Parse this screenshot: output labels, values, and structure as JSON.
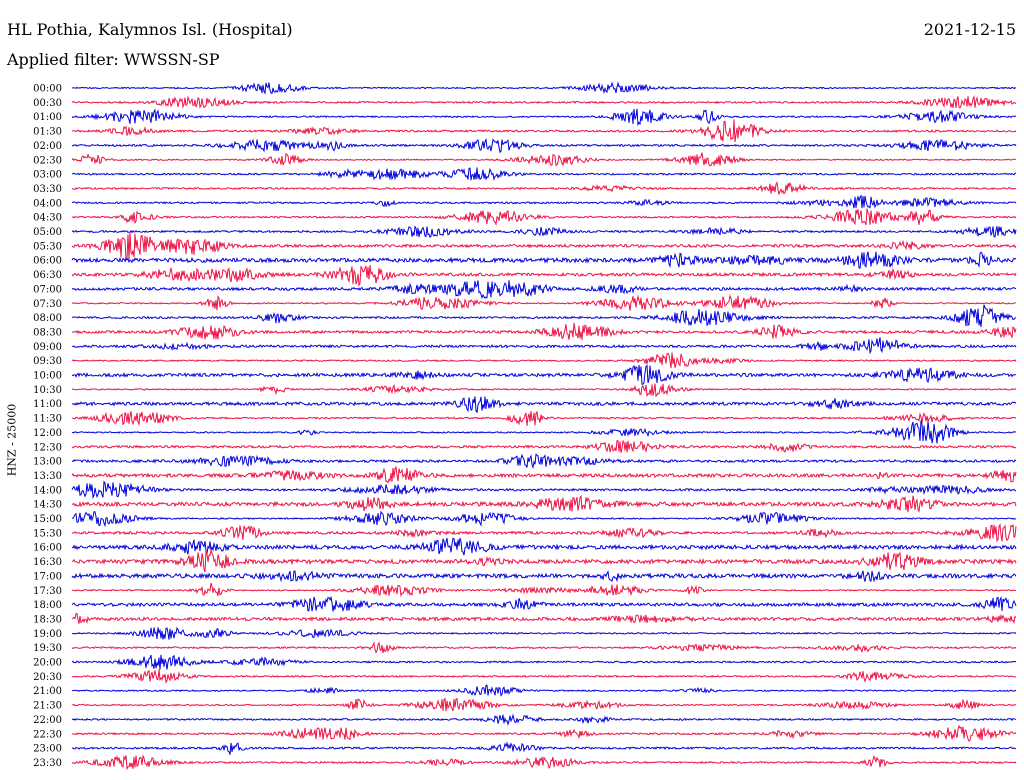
{
  "header": {
    "station": "HL Pothia, Kalymnos Isl. (Hospital)",
    "date": "2021-12-15",
    "filter": "Applied filter: WWSSN-SP"
  },
  "chart_data": {
    "type": "line",
    "ylabel": "HNZ - 25000",
    "colors": [
      "#0000dd",
      "#ee1144"
    ],
    "rows": [
      "00:00",
      "00:30",
      "01:00",
      "01:30",
      "02:00",
      "02:30",
      "03:00",
      "03:30",
      "04:00",
      "04:30",
      "05:00",
      "05:30",
      "06:00",
      "06:30",
      "07:00",
      "07:30",
      "08:00",
      "08:30",
      "09:00",
      "09:30",
      "10:00",
      "10:30",
      "11:00",
      "11:30",
      "12:00",
      "12:30",
      "13:00",
      "13:30",
      "14:00",
      "14:30",
      "15:00",
      "15:30",
      "16:00",
      "16:30",
      "17:00",
      "17:30",
      "18:00",
      "18:30",
      "19:00",
      "19:30",
      "20:00",
      "20:30",
      "21:00",
      "21:30",
      "22:00",
      "22:30",
      "23:00",
      "23:30"
    ]
  }
}
